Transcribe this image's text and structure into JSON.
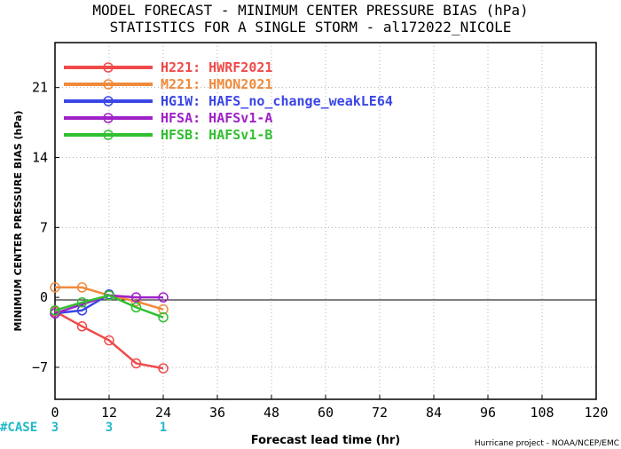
{
  "chart_data": {
    "type": "line",
    "title": "MODEL FORECAST - MINIMUM CENTER PRESSURE BIAS (hPa)",
    "subtitle": "STATISTICS FOR A SINGLE STORM - al172022_NICOLE",
    "xlabel": "Forecast lead time (hr)",
    "ylabel": "MINIMUM CENTER PRESSURE BIAS (hPa)",
    "xlim": [
      0,
      120
    ],
    "ylim": [
      -10.2,
      25.5
    ],
    "xticks": [
      0,
      12,
      24,
      36,
      48,
      60,
      72,
      84,
      96,
      108,
      120
    ],
    "yticks": [
      -7,
      0,
      7,
      14,
      21
    ],
    "grid": true,
    "legend_position": "top-left",
    "series": [
      {
        "name": "H221: HWRF2021",
        "color": "#f04a4a",
        "x": [
          0,
          6,
          12,
          18,
          24
        ],
        "y": [
          -1.4,
          -2.9,
          -4.3,
          -6.6,
          -7.1
        ]
      },
      {
        "name": "M221: HMON2021",
        "color": "#f08a3c",
        "x": [
          0,
          6,
          12,
          18,
          24
        ],
        "y": [
          1.0,
          1.0,
          0.2,
          -0.4,
          -1.2
        ]
      },
      {
        "name": "HG1W: HAFS_no_change_weakLE64",
        "color": "#3a46e6",
        "x": [
          0,
          6,
          12
        ],
        "y": [
          -1.6,
          -1.3,
          0.3
        ]
      },
      {
        "name": "HFSA: HAFSv1-A",
        "color": "#a020c8",
        "x": [
          0,
          12,
          18,
          24
        ],
        "y": [
          -1.6,
          0.2,
          0.0,
          0.0
        ]
      },
      {
        "name": "HFSB: HAFSv1-B",
        "color": "#30c030",
        "x": [
          0,
          6,
          12,
          18,
          24
        ],
        "y": [
          -1.3,
          -0.5,
          0.2,
          -1.0,
          -2.0
        ]
      }
    ],
    "case_label": "#CASE",
    "case_counts": [
      {
        "x": 0,
        "label": "3"
      },
      {
        "x": 12,
        "label": "3"
      },
      {
        "x": 24,
        "label": "1"
      }
    ],
    "case_color": "#20b8c8",
    "credit": "Hurricane project - NOAA/NCEP/EMC"
  }
}
